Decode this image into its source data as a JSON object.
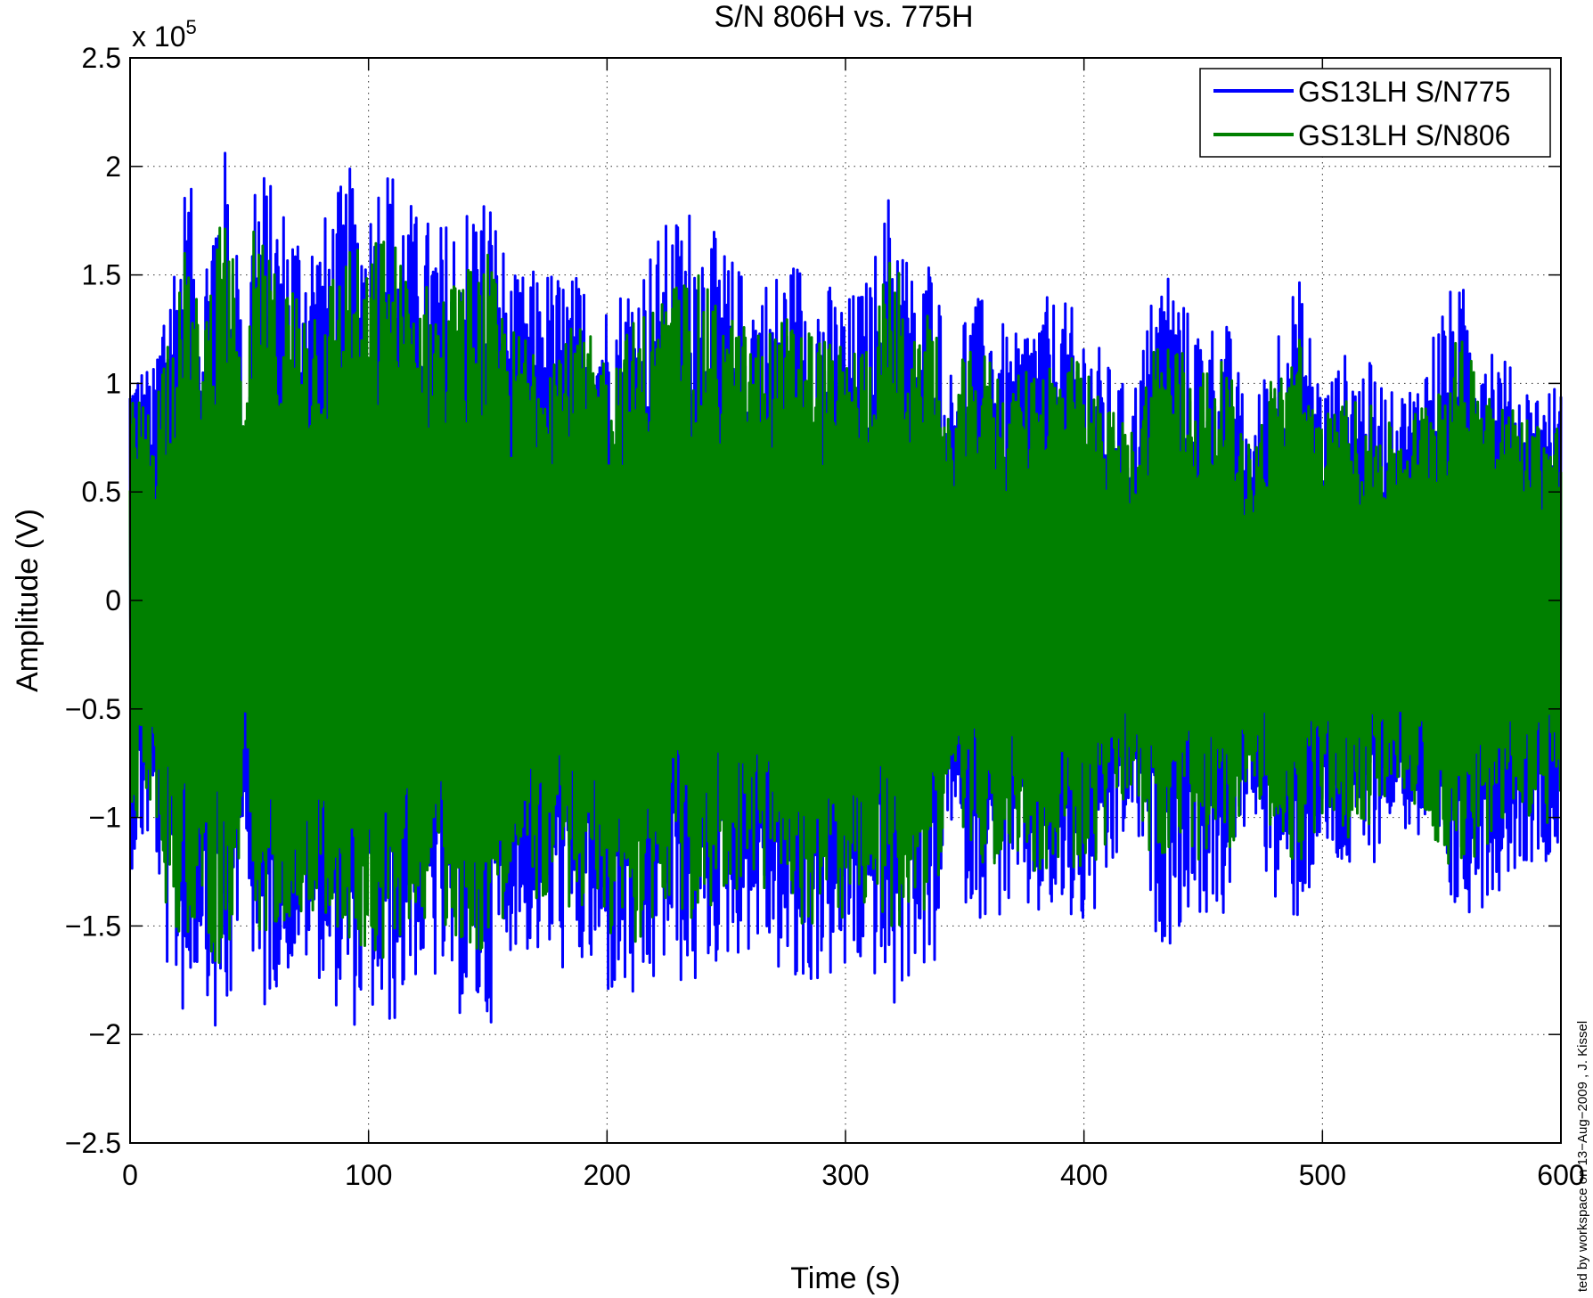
{
  "chart_data": {
    "type": "line",
    "title": "S/N 806H vs. 775H",
    "xlabel": "Time (s)",
    "ylabel": "Amplitude (V)",
    "xlim": [
      0,
      600
    ],
    "ylim": [
      -250000,
      250000
    ],
    "y_exponent_label": "x 10",
    "y_exponent_power": "5",
    "xticks": [
      0,
      100,
      200,
      300,
      400,
      500,
      600
    ],
    "xtick_labels": [
      "0",
      "100",
      "200",
      "300",
      "400",
      "500",
      "600"
    ],
    "yticks": [
      -2.5,
      -2,
      -1.5,
      -1,
      -0.5,
      0,
      0.5,
      1,
      1.5,
      2,
      2.5
    ],
    "ytick_labels": [
      "−2.5",
      "−2",
      "−1.5",
      "−1",
      "−0.5",
      "0",
      "0.5",
      "1",
      "1.5",
      "2",
      "2.5"
    ],
    "grid": true,
    "legend_position": "top-right",
    "series": [
      {
        "name": "GS13LH S/N775",
        "color": "#0000ff",
        "envelope_t": [
          0,
          10,
          15,
          20,
          24,
          30,
          35,
          40,
          45,
          48,
          52,
          60,
          70,
          80,
          92,
          100,
          105,
          112,
          120,
          130,
          140,
          150,
          160,
          175,
          190,
          200,
          215,
          225,
          235,
          245,
          255,
          265,
          280,
          290,
          300,
          310,
          320,
          330,
          338,
          342,
          350,
          360,
          370,
          380,
          390,
          400,
          410,
          420,
          430,
          435,
          445,
          460,
          470,
          480,
          490,
          500,
          510,
          520,
          530,
          540,
          550,
          555,
          560,
          570,
          580,
          590,
          600
        ],
        "envelope_v": [
          115000,
          108000,
          160000,
          170000,
          205000,
          150000,
          200000,
          210000,
          180000,
          80000,
          215000,
          190000,
          180000,
          175000,
          200000,
          185000,
          210000,
          200000,
          180000,
          175000,
          185000,
          195000,
          150000,
          155000,
          150000,
          140000,
          160000,
          175000,
          185000,
          170000,
          155000,
          150000,
          160000,
          150000,
          140000,
          150000,
          200000,
          140000,
          175000,
          95000,
          140000,
          140000,
          120000,
          140000,
          140000,
          130000,
          110000,
          95000,
          150000,
          160000,
          130000,
          130000,
          80000,
          130000,
          150000,
          100000,
          115000,
          110000,
          95000,
          105000,
          140000,
          145000,
          145000,
          130000,
          105000,
          100000,
          100000
        ],
        "envelope_min": [
          -125000,
          -110000,
          -170000,
          -185000,
          -200000,
          -160000,
          -205000,
          -205000,
          -175000,
          -80000,
          -210000,
          -180000,
          -170000,
          -175000,
          -200000,
          -190000,
          -205000,
          -195000,
          -175000,
          -180000,
          -195000,
          -200000,
          -160000,
          -170000,
          -175000,
          -185000,
          -195000,
          -170000,
          -185000,
          -170000,
          -165000,
          -160000,
          -190000,
          -175000,
          -180000,
          -170000,
          -195000,
          -165000,
          -190000,
          -95000,
          -140000,
          -150000,
          -145000,
          -150000,
          -150000,
          -155000,
          -140000,
          -100000,
          -155000,
          -160000,
          -145000,
          -150000,
          -90000,
          -145000,
          -150000,
          -120000,
          -130000,
          -125000,
          -100000,
          -115000,
          -145000,
          -150000,
          -145000,
          -140000,
          -125000,
          -120000,
          -120000
        ]
      },
      {
        "name": "GS13LH S/N806",
        "color": "#008000",
        "envelope_t": [
          0,
          10,
          15,
          20,
          24,
          30,
          35,
          40,
          45,
          48,
          52,
          60,
          70,
          80,
          92,
          100,
          105,
          112,
          120,
          130,
          140,
          150,
          160,
          175,
          190,
          200,
          215,
          225,
          235,
          245,
          255,
          265,
          280,
          290,
          300,
          310,
          320,
          330,
          338,
          342,
          350,
          360,
          370,
          380,
          390,
          400,
          410,
          420,
          430,
          435,
          445,
          460,
          470,
          480,
          490,
          500,
          510,
          520,
          530,
          540,
          550,
          555,
          560,
          570,
          580,
          590,
          600
        ],
        "envelope_v": [
          95000,
          90000,
          130000,
          140000,
          170000,
          125000,
          170000,
          175000,
          150000,
          70000,
          175000,
          155000,
          150000,
          145000,
          170000,
          155000,
          175000,
          165000,
          150000,
          145000,
          155000,
          160000,
          125000,
          130000,
          125000,
          115000,
          135000,
          145000,
          155000,
          140000,
          130000,
          125000,
          135000,
          125000,
          115000,
          125000,
          165000,
          115000,
          145000,
          80000,
          115000,
          115000,
          100000,
          115000,
          115000,
          110000,
          90000,
          80000,
          125000,
          130000,
          110000,
          110000,
          70000,
          110000,
          125000,
          85000,
          95000,
          90000,
          80000,
          90000,
          115000,
          120000,
          120000,
          110000,
          90000,
          85000,
          85000
        ],
        "envelope_min": [
          -105000,
          -95000,
          -140000,
          -155000,
          -165000,
          -135000,
          -170000,
          -170000,
          -145000,
          -70000,
          -175000,
          -150000,
          -145000,
          -145000,
          -165000,
          -160000,
          -170000,
          -160000,
          -145000,
          -150000,
          -160000,
          -165000,
          -135000,
          -140000,
          -145000,
          -155000,
          -160000,
          -140000,
          -155000,
          -140000,
          -135000,
          -135000,
          -155000,
          -145000,
          -150000,
          -140000,
          -160000,
          -135000,
          -155000,
          -80000,
          -115000,
          -125000,
          -120000,
          -125000,
          -125000,
          -130000,
          -115000,
          -85000,
          -130000,
          -130000,
          -120000,
          -125000,
          -75000,
          -120000,
          -125000,
          -100000,
          -110000,
          -105000,
          -85000,
          -95000,
          -120000,
          -125000,
          -120000,
          -115000,
          -105000,
          -100000,
          -110000
        ]
      }
    ]
  },
  "annotation": {
    "side_text": "ted by workspace on 13−Aug−2009 , J. Kissel"
  }
}
